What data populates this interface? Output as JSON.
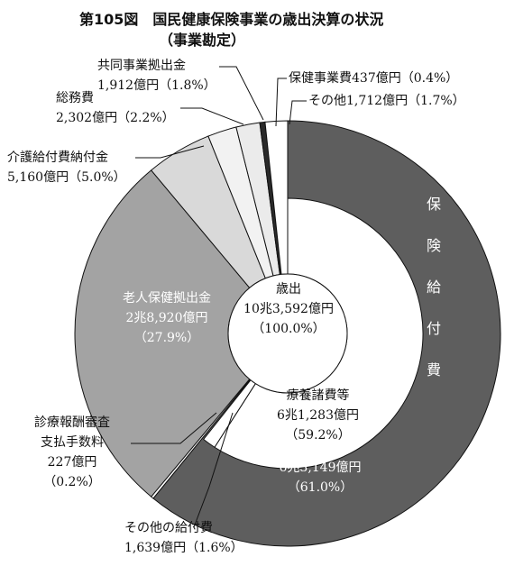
{
  "chart_data": {
    "type": "donut",
    "title": "第105図　国民健康保険事業の歳出決算の状況",
    "subtitle": "（事業勘定）",
    "center": {
      "label": "歳出",
      "amount": "10兆3,592億円",
      "value": 100.0,
      "value_label": "（100.0%）"
    },
    "categories": [
      "保険給付費",
      "診療報酬審査支払手数料",
      "老人保健拠出金",
      "介護給付費納付金",
      "総務費",
      "共同事業拠出金",
      "保健事業費",
      "その他"
    ],
    "amounts": [
      "6兆3,149億円",
      "227億円",
      "2兆8,920億円",
      "5,160億円",
      "2,302億円",
      "1,912億円",
      "437億円",
      "1,712億円"
    ],
    "values": [
      61.0,
      0.2,
      27.9,
      5.0,
      2.2,
      1.8,
      0.4,
      1.7
    ],
    "value_labels": [
      "（61.0%）",
      "（0.2%）",
      "（27.9%）",
      "（5.0%）",
      "（2.2%）",
      "（1.8%）",
      "（0.4%）",
      "（1.7%）"
    ],
    "colors": [
      "#5e5e5e",
      "#ffffff",
      "#a3a3a3",
      "#d9d9d9",
      "#f2f2f2",
      "#ebebeb",
      "#2a2a2a",
      "#ffffff"
    ],
    "breakdown": {
      "categories": [
        "療養諸費等",
        "その他の給付費"
      ],
      "amounts": [
        "6兆1,283億円",
        "1,639億円"
      ],
      "values": [
        59.2,
        1.6
      ],
      "value_labels": [
        "（59.2%）",
        "（1.6%）"
      ],
      "colors": [
        "#ffffff",
        "#ffffff"
      ]
    }
  }
}
